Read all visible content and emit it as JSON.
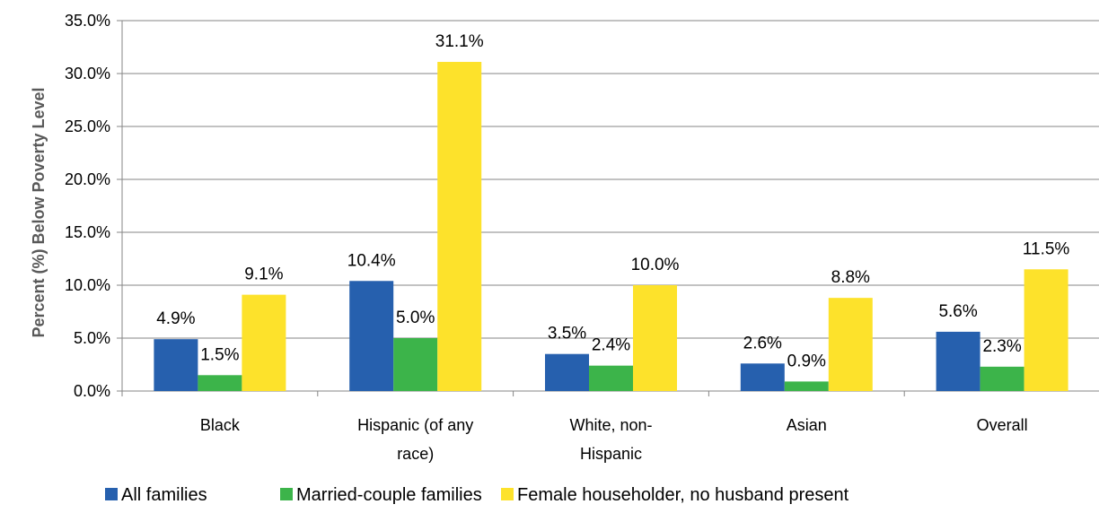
{
  "chart_data": {
    "type": "bar",
    "title": "",
    "xlabel": "",
    "ylabel": "Percent (%) Below Poverty Level",
    "ylim": [
      0,
      35
    ],
    "ytick_step": 5,
    "ytick_labels": [
      "0.0%",
      "5.0%",
      "10.0%",
      "15.0%",
      "20.0%",
      "25.0%",
      "30.0%",
      "35.0%"
    ],
    "grid": "horizontal major gridlines",
    "legend_position": "bottom",
    "categories": [
      [
        "Black"
      ],
      [
        "Hispanic (of any",
        "race)"
      ],
      [
        "White, non-",
        "Hispanic"
      ],
      [
        "Asian"
      ],
      [
        "Overall"
      ]
    ],
    "series": [
      {
        "name": "All families",
        "color": "#2660AE",
        "values": [
          4.9,
          10.4,
          3.5,
          2.6,
          5.6
        ],
        "labels": [
          "4.9%",
          "10.4%",
          "3.5%",
          "2.6%",
          "5.6%"
        ]
      },
      {
        "name": "Married-couple families",
        "color": "#3CB44A",
        "values": [
          1.5,
          5.0,
          2.4,
          0.9,
          2.3
        ],
        "labels": [
          "1.5%",
          "5.0%",
          "2.4%",
          "0.9%",
          "2.3%"
        ]
      },
      {
        "name": "Female householder, no husband present",
        "color": "#FDE22B",
        "values": [
          9.1,
          31.1,
          10.0,
          8.8,
          11.5
        ],
        "labels": [
          "9.1%",
          "31.1%",
          "10.0%",
          "8.8%",
          "11.5%"
        ]
      }
    ]
  }
}
